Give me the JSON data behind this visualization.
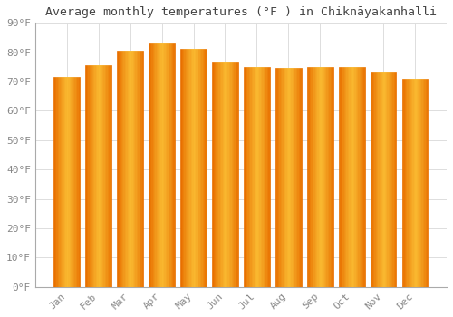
{
  "months": [
    "Jan",
    "Feb",
    "Mar",
    "Apr",
    "May",
    "Jun",
    "Jul",
    "Aug",
    "Sep",
    "Oct",
    "Nov",
    "Dec"
  ],
  "values": [
    71.5,
    75.5,
    80.5,
    83.0,
    81.0,
    76.5,
    75.0,
    74.5,
    75.0,
    75.0,
    73.0,
    71.0
  ],
  "bar_color_center": "#FFD040",
  "bar_color_edge": "#E87000",
  "title": "Average monthly temperatures (°F ) in Chiknāyakanhalli",
  "ylim": [
    0,
    90
  ],
  "yticks": [
    0,
    10,
    20,
    30,
    40,
    50,
    60,
    70,
    80,
    90
  ],
  "ytick_labels": [
    "0°F",
    "10°F",
    "20°F",
    "30°F",
    "40°F",
    "50°F",
    "60°F",
    "70°F",
    "80°F",
    "90°F"
  ],
  "bg_color": "#ffffff",
  "grid_color": "#dddddd",
  "title_fontsize": 9.5,
  "tick_fontsize": 8,
  "font_family": "monospace",
  "tick_color": "#888888",
  "bar_width": 0.82
}
